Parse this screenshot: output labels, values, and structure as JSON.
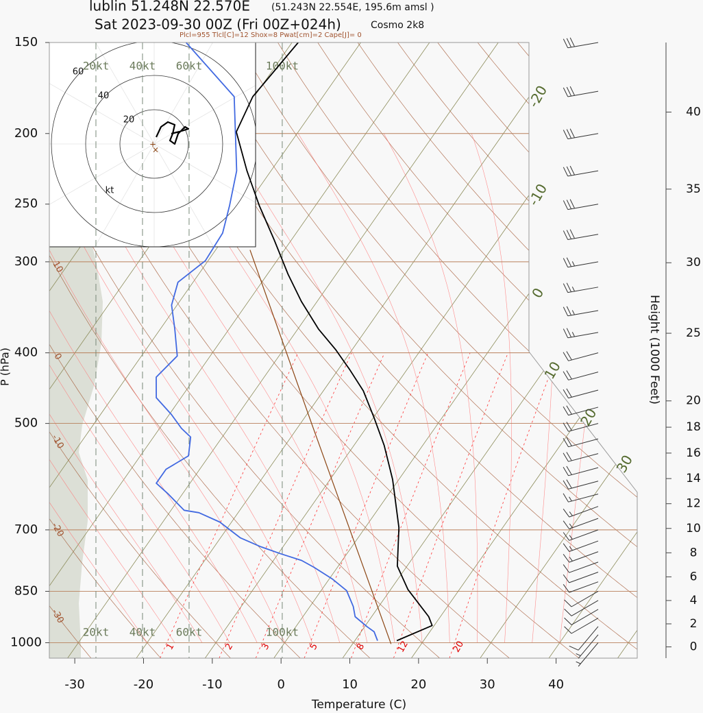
{
  "chart_data": {
    "type": "skewt",
    "title": "lublin 51.248N 22.570E",
    "location_detail": "(51.243N 22.554E, 195.6m amsl )",
    "subtitle": "Sat 2023-09-30 00Z (Fri 00Z+024h)",
    "model": "Cosmo 2k8",
    "indices": "Plcl=955 Tlcl[C]=12 Shox=8 Pwat[cm]=2 Cape[J]= 0",
    "xlabel": "Temperature (C)",
    "ylabel": "P (hPa)",
    "y2label": "Height (1000 Feet)",
    "xlim": [
      -33.7,
      51.8
    ],
    "xticks": [
      -30,
      -20,
      -10,
      0,
      10,
      20,
      30,
      40
    ],
    "ylim": [
      1050,
      150
    ],
    "ylog": true,
    "yticks": [
      150,
      200,
      250,
      300,
      400,
      500,
      700,
      850,
      1000
    ],
    "y2ticks": [
      0,
      2,
      4,
      6,
      8,
      10,
      12,
      14,
      16,
      18,
      20,
      25,
      30,
      35,
      40
    ],
    "series": [
      {
        "color": "#000000",
        "pressure": [
          993.5,
          947,
          921,
          845,
          785,
          695,
          597,
          536,
          491,
          451,
          422,
          396,
          371,
          340,
          312,
          280,
          251,
          225,
          199,
          178,
          150
        ],
        "values": [
          16.1,
          19.7,
          18.3,
          12.5,
          8.6,
          4.9,
          -0.9,
          -5.6,
          -9.9,
          -14.2,
          -18.3,
          -22.4,
          -27.0,
          -32.3,
          -37.0,
          -42.5,
          -48.2,
          -53.5,
          -59.0,
          -60.2,
          -59.1
        ]
      },
      {
        "color": "#4169e1",
        "pressure": [
          993.5,
          966,
          951,
          921,
          892,
          848,
          818,
          788,
          771,
          755,
          738,
          718,
          683,
          663,
          658,
          624,
          604,
          578,
          554,
          522,
          508,
          486,
          461,
          432,
          404,
          371,
          344,
          320,
          299,
          274,
          251,
          225,
          178,
          150
        ],
        "values": [
          13.3,
          11.9,
          10.4,
          7.6,
          6.3,
          3.7,
          0.5,
          -3.4,
          -5.9,
          -9.6,
          -13.3,
          -17.1,
          -21.7,
          -25.7,
          -28.1,
          -32.2,
          -34.9,
          -34.9,
          -33.0,
          -34.6,
          -36.8,
          -39.7,
          -43.6,
          -45.7,
          -44.8,
          -47.9,
          -50.8,
          -52.2,
          -50.4,
          -50.7,
          -52.5,
          -55.0,
          -62.9,
          -75.4
        ]
      },
      {
        "color": "#8b4513",
        "pressure": [
          1004,
          502,
          289
        ],
        "values": [
          15.6,
          -18.2,
          -45.0
        ]
      }
    ],
    "dry_adiabat_labels": [
      10,
      0,
      -10,
      -20,
      -30
    ],
    "isotherm_labels": [
      -20,
      -10,
      0,
      10,
      20,
      30
    ],
    "mixing_ratio_labels": [
      1,
      2,
      3,
      5,
      8,
      12,
      20
    ],
    "wind_xlim": [
      0,
      252.4
    ],
    "wind_ticks": [
      {
        "value": 20,
        "label": "20kt"
      },
      {
        "value": 40,
        "label": "40kt"
      },
      {
        "value": 60,
        "label": "60kt"
      },
      {
        "value": 100,
        "label": "100kt"
      }
    ],
    "winds": {
      "pressure": [
        150,
        175,
        200,
        225,
        250,
        275,
        300,
        325,
        350,
        375,
        400,
        425,
        450,
        475,
        500,
        525,
        550,
        575,
        600,
        625,
        650,
        675,
        700,
        725,
        750,
        775,
        800,
        825,
        850,
        875,
        900,
        925,
        950,
        975,
        1000
      ],
      "speed": [
        30,
        30,
        32,
        30,
        28,
        28,
        26,
        25,
        25,
        24,
        22,
        22,
        20,
        20,
        20,
        20,
        18,
        18,
        18,
        16,
        16,
        15,
        15,
        14,
        14,
        12,
        12,
        12,
        10,
        10,
        10,
        8,
        8,
        6,
        5
      ],
      "direction": [
        260,
        260,
        260,
        260,
        260,
        260,
        260,
        260,
        260,
        260,
        255,
        255,
        255,
        255,
        255,
        255,
        255,
        255,
        255,
        255,
        250,
        250,
        250,
        250,
        250,
        250,
        250,
        250,
        240,
        240,
        240,
        240,
        220,
        220,
        220
      ]
    },
    "hodograph": {
      "xlim": [
        -61.2,
        59.2
      ],
      "ylim": [
        -60,
        59.2
      ],
      "rings": [
        20,
        40,
        60
      ],
      "unit": "kt",
      "u": [
        1.2,
        4,
        8,
        12,
        10.8,
        9.2,
        12,
        14,
        18,
        20,
        14.8,
        10
      ],
      "v": [
        4,
        10,
        12.8,
        11.2,
        6,
        2,
        0,
        6,
        10,
        8.8,
        7.2,
        6
      ]
    }
  }
}
